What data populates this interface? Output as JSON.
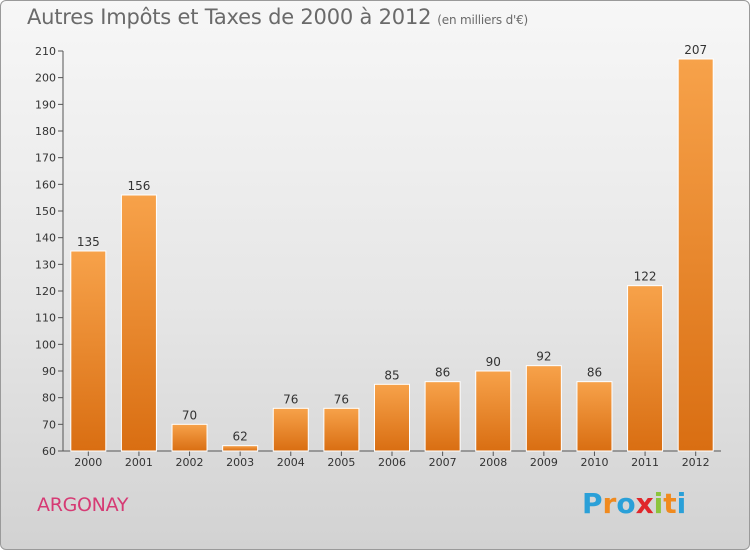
{
  "header": {
    "title": "Autres Impôts et Taxes de 2000 à 2012",
    "unit": "(en milliers d'€)"
  },
  "footer": {
    "commune": "ARGONAY",
    "logo_text": "Proxiti"
  },
  "colors": {
    "bar_light": "#f7a24a",
    "bar_dark": "#d96e12",
    "commune": "#d63a74",
    "logo": [
      "#2aa0d8",
      "#f08a1e",
      "#2aa0d8",
      "#e0262a",
      "#8cc43c",
      "#f08a1e",
      "#2aa0d8"
    ]
  },
  "chart_data": {
    "type": "bar",
    "title": "Autres Impôts et Taxes de 2000 à 2012",
    "subtitle": "(en milliers d'€)",
    "categories": [
      "2000",
      "2001",
      "2002",
      "2003",
      "2004",
      "2005",
      "2006",
      "2007",
      "2008",
      "2009",
      "2010",
      "2011",
      "2012"
    ],
    "values": [
      135,
      156,
      70,
      62,
      76,
      76,
      85,
      86,
      90,
      92,
      86,
      122,
      207
    ],
    "ylim": [
      60,
      210
    ],
    "yticks": [
      60,
      70,
      80,
      90,
      100,
      110,
      120,
      130,
      140,
      150,
      160,
      170,
      180,
      190,
      200,
      210
    ],
    "grid": false,
    "data_labels": true
  }
}
